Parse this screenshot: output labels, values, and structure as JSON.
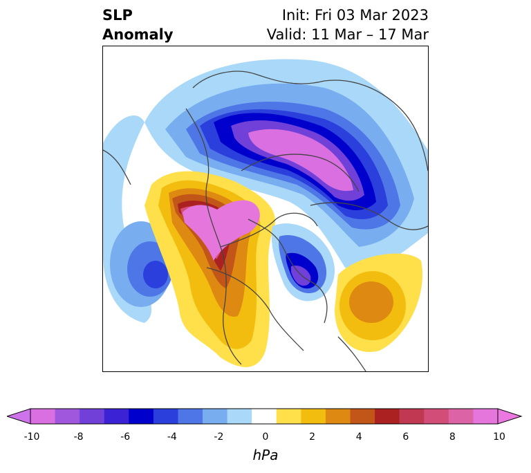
{
  "title": {
    "left_line1": "SLP",
    "left_line2": "Anomaly",
    "right_line1": "Init: Fri 03 Mar 2023",
    "right_line2": "Valid: 11 Mar – 17 Mar"
  },
  "colorbar": {
    "unit": "hPa",
    "ticks": [
      "-10",
      "-8",
      "-6",
      "-4",
      "-2",
      "0",
      "2",
      "4",
      "6",
      "8",
      "10"
    ],
    "colors": [
      "#d96fe0",
      "#a157dd",
      "#7040d9",
      "#3b22d4",
      "#0000cc",
      "#2a3fdc",
      "#4f76e6",
      "#78aef0",
      "#a9d8f8",
      "#ffffff",
      "#ffe04a",
      "#f3bd0f",
      "#de8a12",
      "#c25518",
      "#ab2121",
      "#c03852",
      "#d24e78",
      "#dc63a6",
      "#e577dc"
    ],
    "under_color": "#cf73ec",
    "over_color": "#ea78e0"
  }
}
